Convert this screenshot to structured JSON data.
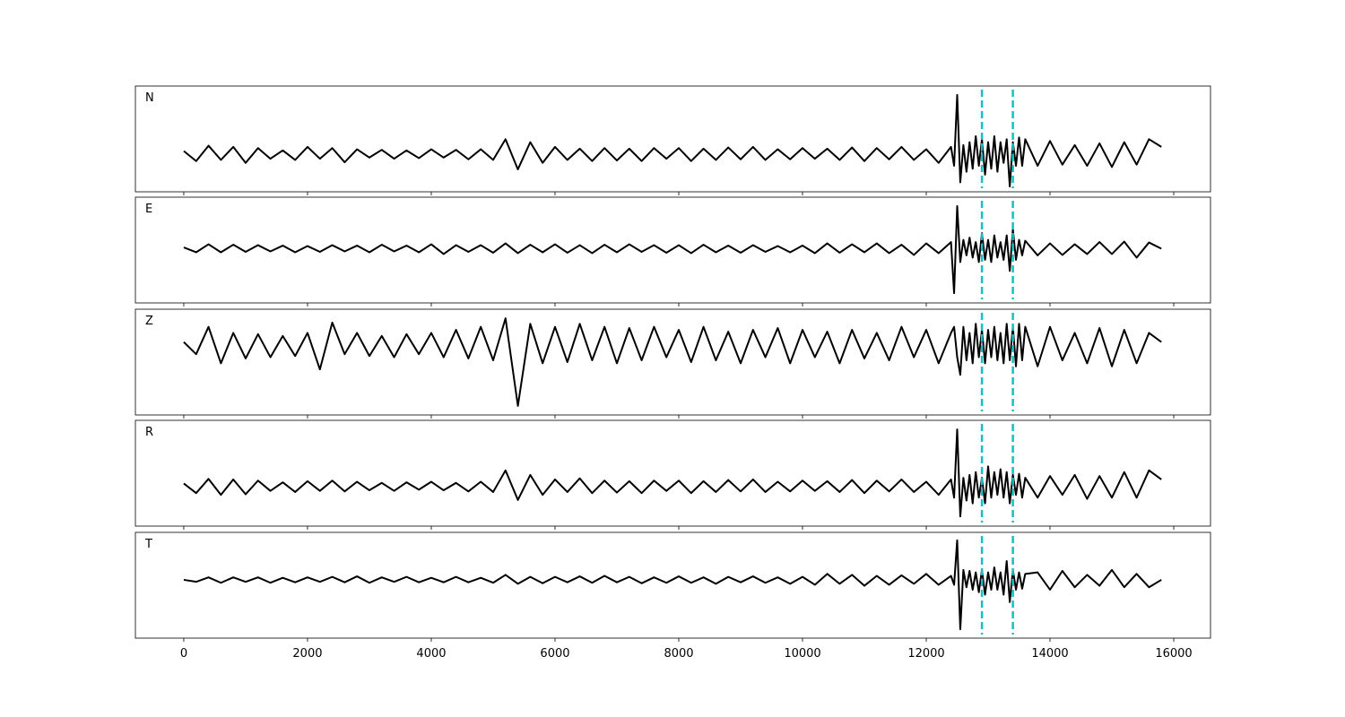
{
  "chart_data": {
    "type": "line",
    "x": [
      0,
      200,
      400,
      600,
      800,
      1000,
      1200,
      1400,
      1600,
      1800,
      2000,
      2200,
      2400,
      2600,
      2800,
      3000,
      3200,
      3400,
      3600,
      3800,
      4000,
      4200,
      4400,
      4600,
      4800,
      5000,
      5200,
      5400,
      5600,
      5800,
      6000,
      6200,
      6400,
      6600,
      6800,
      7000,
      7200,
      7400,
      7600,
      7800,
      8000,
      8200,
      8400,
      8600,
      8800,
      9000,
      9200,
      9400,
      9600,
      9800,
      10000,
      10200,
      10400,
      10600,
      10800,
      11000,
      11200,
      11400,
      11600,
      11800,
      12000,
      12200,
      12400,
      12450,
      12500,
      12550,
      12600,
      12650,
      12700,
      12750,
      12800,
      12850,
      12900,
      12950,
      13000,
      13050,
      13100,
      13150,
      13200,
      13250,
      13300,
      13350,
      13400,
      13450,
      13500,
      13550,
      13600,
      13800,
      14000,
      14200,
      14400,
      14600,
      14800,
      15000,
      15200,
      15400,
      15600,
      15800
    ],
    "xlim": [
      -782,
      16594
    ],
    "xticks": [
      0,
      2000,
      4000,
      6000,
      8000,
      10000,
      12000,
      14000,
      16000
    ],
    "vlines": [
      12900,
      13400
    ],
    "vline_color": "#17bfbf",
    "series": [
      {
        "name": "N",
        "color": "#000000",
        "ylim": [
          -0.64,
          1.15
        ],
        "values": [
          0.05,
          -0.12,
          0.14,
          -0.1,
          0.12,
          -0.15,
          0.1,
          -0.08,
          0.06,
          -0.1,
          0.12,
          -0.08,
          0.1,
          -0.14,
          0.08,
          -0.06,
          0.07,
          -0.08,
          0.06,
          -0.07,
          0.08,
          -0.06,
          0.07,
          -0.09,
          0.08,
          -0.1,
          0.25,
          -0.26,
          0.2,
          -0.15,
          0.12,
          -0.1,
          0.09,
          -0.12,
          0.1,
          -0.11,
          0.09,
          -0.12,
          0.1,
          -0.08,
          0.1,
          -0.12,
          0.09,
          -0.1,
          0.11,
          -0.09,
          0.12,
          -0.1,
          0.08,
          -0.09,
          0.1,
          -0.08,
          0.09,
          -0.1,
          0.11,
          -0.12,
          0.1,
          -0.09,
          0.12,
          -0.1,
          0.08,
          -0.15,
          0.12,
          -0.2,
          1.0,
          -0.48,
          0.15,
          -0.3,
          0.2,
          -0.25,
          0.3,
          -0.2,
          0.25,
          -0.35,
          0.2,
          -0.25,
          0.3,
          -0.3,
          0.2,
          -0.15,
          0.25,
          -0.55,
          0.2,
          -0.2,
          0.28,
          -0.2,
          0.25,
          -0.2,
          0.22,
          -0.18,
          0.15,
          -0.2,
          0.18,
          -0.22,
          0.2,
          -0.18,
          0.25,
          0.12
        ]
      },
      {
        "name": "E",
        "color": "#000000",
        "ylim": [
          -1.22,
          1.16
        ],
        "values": [
          0.03,
          -0.08,
          0.1,
          -0.08,
          0.09,
          -0.07,
          0.08,
          -0.06,
          0.07,
          -0.08,
          0.06,
          -0.07,
          0.08,
          -0.06,
          0.07,
          -0.08,
          0.09,
          -0.06,
          0.07,
          -0.08,
          0.1,
          -0.12,
          0.08,
          -0.07,
          0.08,
          -0.09,
          0.12,
          -0.1,
          0.09,
          -0.08,
          0.1,
          -0.09,
          0.08,
          -0.1,
          0.09,
          -0.08,
          0.1,
          -0.07,
          0.08,
          -0.09,
          0.08,
          -0.1,
          0.09,
          -0.08,
          0.07,
          -0.09,
          0.08,
          -0.07,
          0.06,
          -0.08,
          0.07,
          -0.1,
          0.12,
          -0.09,
          0.1,
          -0.08,
          0.12,
          -0.1,
          0.09,
          -0.14,
          0.12,
          -0.1,
          0.15,
          -1.0,
          0.96,
          -0.3,
          0.2,
          -0.15,
          0.25,
          -0.2,
          0.15,
          -0.3,
          0.35,
          -0.25,
          0.2,
          -0.3,
          0.3,
          -0.2,
          0.15,
          -0.25,
          0.3,
          -0.5,
          0.44,
          -0.25,
          0.2,
          -0.15,
          0.18,
          -0.15,
          0.12,
          -0.14,
          0.1,
          -0.12,
          0.15,
          -0.12,
          0.16,
          -0.2,
          0.14,
          0.0
        ]
      },
      {
        "name": "Z",
        "color": "#000000",
        "ylim": [
          -1.15,
          0.59
        ],
        "values": [
          0.05,
          -0.15,
          0.3,
          -0.3,
          0.2,
          -0.22,
          0.18,
          -0.2,
          0.15,
          -0.18,
          0.2,
          -0.4,
          0.37,
          -0.15,
          0.2,
          -0.18,
          0.15,
          -0.2,
          0.18,
          -0.15,
          0.2,
          -0.2,
          0.25,
          -0.22,
          0.3,
          -0.25,
          0.44,
          -1.0,
          0.35,
          -0.3,
          0.3,
          -0.28,
          0.35,
          -0.25,
          0.3,
          -0.3,
          0.28,
          -0.25,
          0.3,
          -0.2,
          0.25,
          -0.28,
          0.3,
          -0.25,
          0.22,
          -0.3,
          0.25,
          -0.2,
          0.28,
          -0.3,
          0.25,
          -0.2,
          0.22,
          -0.3,
          0.25,
          -0.22,
          0.2,
          -0.25,
          0.3,
          -0.2,
          0.25,
          -0.3,
          0.2,
          0.3,
          -0.2,
          -0.49,
          0.3,
          -0.25,
          0.2,
          -0.3,
          0.35,
          -0.2,
          0.25,
          -0.3,
          0.25,
          -0.2,
          0.3,
          -0.25,
          0.2,
          -0.3,
          0.35,
          -0.25,
          0.3,
          -0.35,
          0.35,
          -0.25,
          0.3,
          -0.35,
          0.3,
          -0.25,
          0.2,
          -0.3,
          0.28,
          -0.35,
          0.25,
          -0.3,
          0.2,
          0.05
        ]
      },
      {
        "name": "R",
        "color": "#000000",
        "ylim": [
          -0.7,
          1.16
        ],
        "values": [
          0.05,
          -0.12,
          0.13,
          -0.15,
          0.12,
          -0.14,
          0.1,
          -0.08,
          0.07,
          -0.1,
          0.09,
          -0.08,
          0.1,
          -0.09,
          0.08,
          -0.07,
          0.06,
          -0.08,
          0.07,
          -0.06,
          0.08,
          -0.07,
          0.06,
          -0.09,
          0.08,
          -0.1,
          0.28,
          -0.24,
          0.2,
          -0.15,
          0.12,
          -0.1,
          0.14,
          -0.12,
          0.1,
          -0.11,
          0.09,
          -0.12,
          0.1,
          -0.08,
          0.1,
          -0.12,
          0.09,
          -0.1,
          0.11,
          -0.09,
          0.12,
          -0.1,
          0.08,
          -0.09,
          0.1,
          -0.08,
          0.09,
          -0.1,
          0.11,
          -0.12,
          0.1,
          -0.09,
          0.12,
          -0.1,
          0.08,
          -0.15,
          0.12,
          -0.2,
          1.0,
          -0.53,
          0.15,
          -0.25,
          0.2,
          -0.3,
          0.25,
          -0.2,
          0.15,
          -0.3,
          0.35,
          -0.2,
          0.25,
          -0.15,
          0.3,
          -0.2,
          0.25,
          -0.3,
          0.2,
          -0.15,
          0.22,
          -0.2,
          0.15,
          -0.2,
          0.18,
          -0.15,
          0.2,
          -0.22,
          0.18,
          -0.2,
          0.25,
          -0.2,
          0.28,
          0.12
        ]
      },
      {
        "name": "T",
        "color": "#000000",
        "ylim": [
          -1.18,
          0.96
        ],
        "values": [
          0.0,
          -0.04,
          0.05,
          -0.06,
          0.05,
          -0.04,
          0.05,
          -0.06,
          0.04,
          -0.05,
          0.05,
          -0.04,
          0.06,
          -0.05,
          0.07,
          -0.06,
          0.05,
          -0.04,
          0.06,
          -0.05,
          0.04,
          -0.05,
          0.06,
          -0.05,
          0.04,
          -0.06,
          0.1,
          -0.08,
          0.06,
          -0.07,
          0.06,
          -0.05,
          0.07,
          -0.06,
          0.08,
          -0.05,
          0.06,
          -0.07,
          0.05,
          -0.06,
          0.07,
          -0.06,
          0.05,
          -0.08,
          0.06,
          -0.05,
          0.07,
          -0.06,
          0.05,
          -0.08,
          0.06,
          -0.1,
          0.12,
          -0.08,
          0.1,
          -0.12,
          0.08,
          -0.1,
          0.09,
          -0.08,
          0.12,
          -0.1,
          0.08,
          -0.1,
          0.8,
          -1.0,
          0.2,
          -0.15,
          0.18,
          -0.2,
          0.15,
          -0.25,
          0.2,
          -0.3,
          0.15,
          -0.2,
          0.25,
          -0.2,
          0.15,
          -0.3,
          0.38,
          -0.45,
          0.2,
          -0.2,
          0.15,
          -0.18,
          0.12,
          0.15,
          -0.2,
          0.18,
          -0.15,
          0.1,
          -0.12,
          0.2,
          -0.15,
          0.12,
          -0.15,
          0.0
        ]
      }
    ]
  }
}
